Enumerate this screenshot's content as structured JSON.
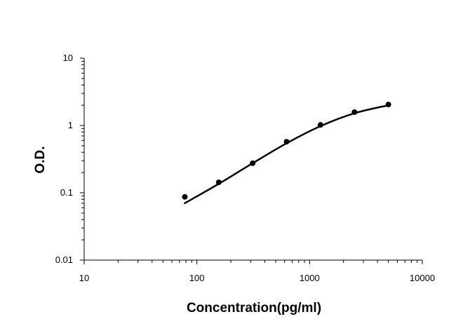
{
  "chart_data": {
    "type": "scatter",
    "title": "",
    "xlabel": "Concentration(pg/ml)",
    "ylabel": "O.D.",
    "xscale": "log",
    "yscale": "log",
    "xlim": [
      10,
      10000
    ],
    "ylim": [
      0.01,
      10
    ],
    "x_tick_labels": [
      "10",
      "100",
      "1000",
      "10000"
    ],
    "y_tick_labels": [
      "0.01",
      "0.1",
      "1",
      "10"
    ],
    "grid": false,
    "legend": "none",
    "series": [
      {
        "kind": "points",
        "x": [
          78.125,
          156.25,
          312.5,
          625,
          1250,
          2500,
          5000
        ],
        "y": [
          0.087,
          0.143,
          0.275,
          0.575,
          1.02,
          1.58,
          2.05
        ]
      },
      {
        "kind": "fitted-curve",
        "x": [
          78.125,
          156.25,
          312.5,
          625,
          1250,
          2500,
          5000
        ],
        "y": [
          0.07,
          0.136,
          0.275,
          0.545,
          0.98,
          1.52,
          2.0
        ]
      }
    ],
    "colors": {
      "marker": "#000000",
      "curve": "#000000",
      "axis": "#000000"
    }
  }
}
